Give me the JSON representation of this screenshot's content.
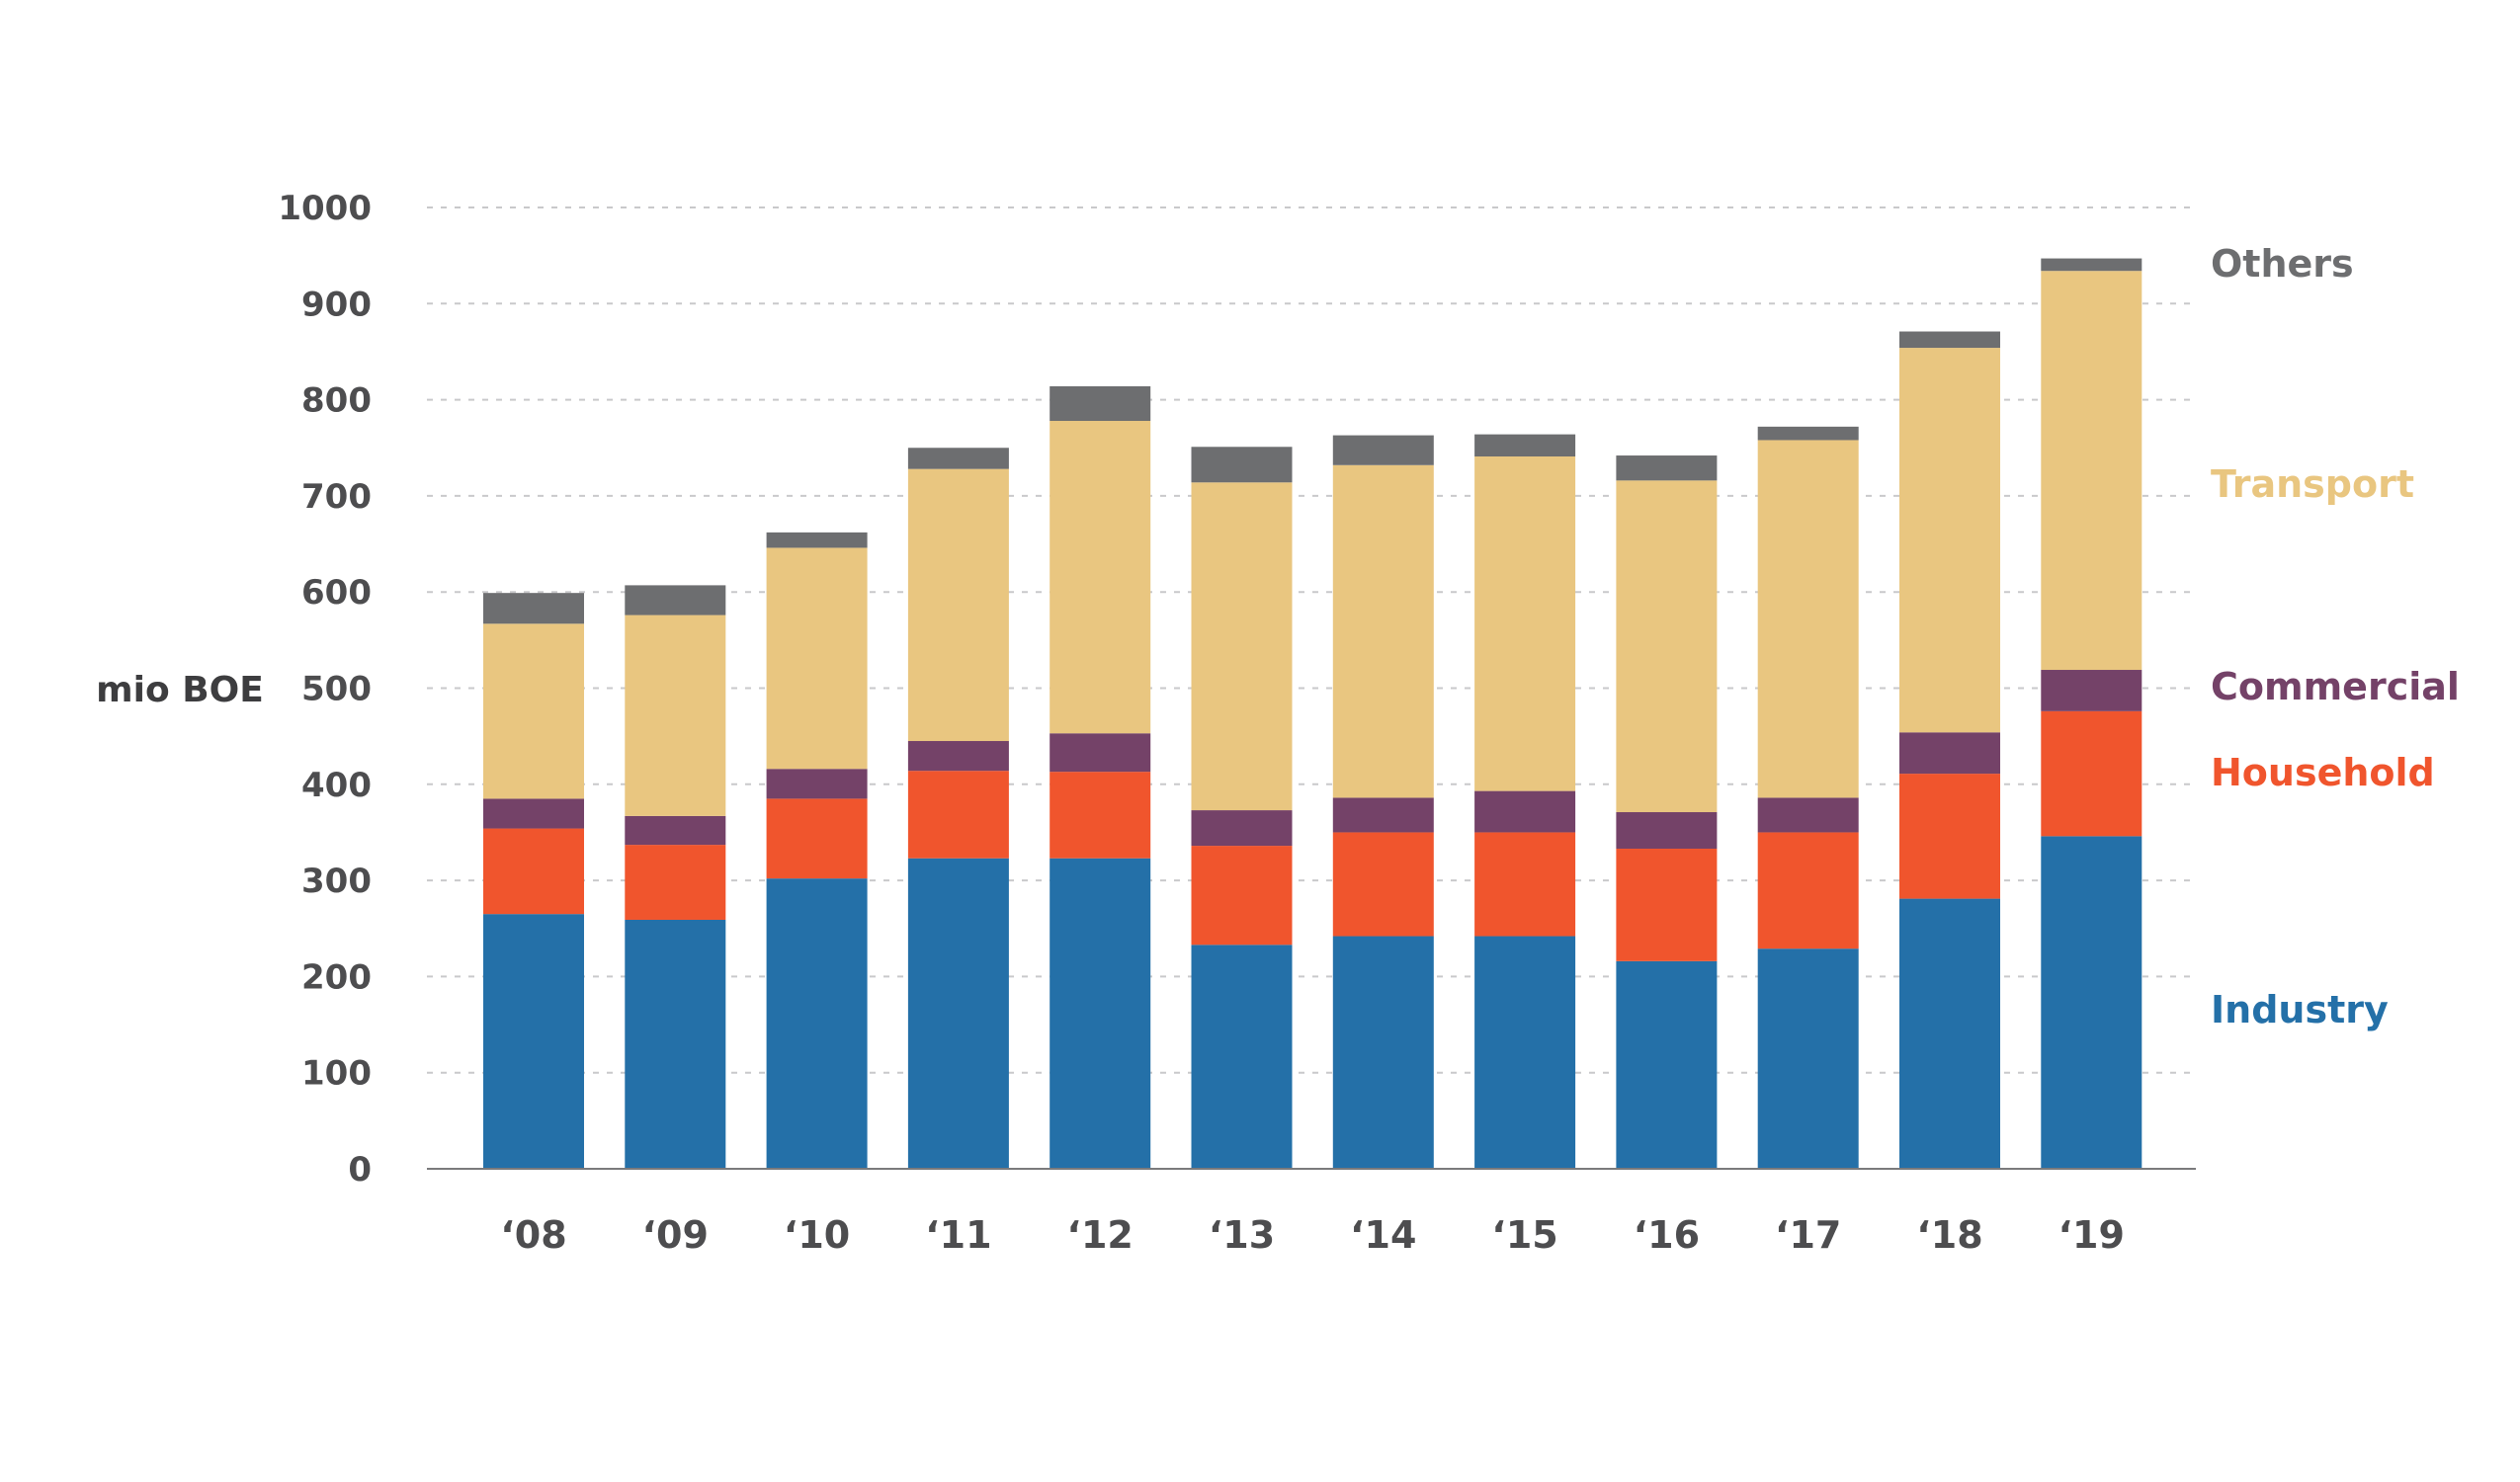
{
  "chart_data": {
    "type": "bar",
    "stacked": true,
    "ylabel": "mio BOE",
    "xlabel": "",
    "ylim": [
      0,
      1000
    ],
    "yticks": [
      0,
      100,
      200,
      300,
      400,
      500,
      600,
      700,
      800,
      900,
      1000
    ],
    "grid": true,
    "legend_placement": "right",
    "categories": [
      "‘08",
      "‘09",
      "‘10",
      "‘11",
      "‘12",
      "‘13",
      "‘14",
      "‘15",
      "‘16",
      "‘17",
      "‘18",
      "‘19"
    ],
    "series": [
      {
        "name": "Industry",
        "color": "#2470a8",
        "values": [
          265,
          259,
          302,
          323,
          323,
          233,
          242,
          242,
          216,
          229,
          281,
          346
        ]
      },
      {
        "name": "Household",
        "color": "#f0552d",
        "values": [
          89,
          78,
          83,
          91,
          90,
          103,
          108,
          108,
          117,
          121,
          130,
          130
        ]
      },
      {
        "name": "Commercial",
        "color": "#744268",
        "values": [
          31,
          30,
          31,
          31,
          40,
          37,
          36,
          43,
          38,
          36,
          43,
          43
        ]
      },
      {
        "name": "Transport",
        "color": "#e9c680",
        "values": [
          182,
          209,
          230,
          283,
          325,
          341,
          346,
          348,
          345,
          372,
          400,
          415
        ]
      },
      {
        "name": "Others",
        "color": "#6d6e70",
        "values": [
          32,
          31,
          16,
          22,
          36,
          37,
          31,
          23,
          26,
          14,
          17,
          13
        ]
      }
    ]
  }
}
